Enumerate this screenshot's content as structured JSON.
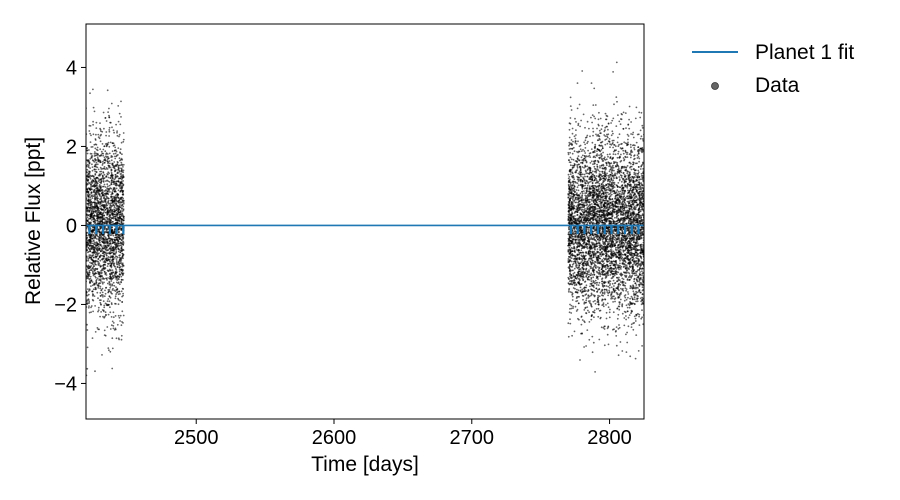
{
  "chart_data": {
    "type": "scatter",
    "title": "",
    "xlabel": "Time [days]",
    "ylabel": "Relative Flux [ppt]",
    "xlim": [
      2420,
      2825
    ],
    "ylim": [
      -4.9,
      5.1
    ],
    "xticks": [
      2500,
      2600,
      2700,
      2800
    ],
    "yticks": [
      -4,
      -2,
      0,
      2,
      4
    ],
    "ytick_labels": [
      "−4",
      "−2",
      "0",
      "2",
      "4"
    ],
    "grid": false,
    "legend_position": "outside-top-right",
    "series": [
      {
        "name": "Planet 1 fit",
        "kind": "line",
        "color": "#1f77b4",
        "baseline": 0,
        "transit_depth": -0.2,
        "transit_times": [
          2422.5,
          2427.5,
          2432.4,
          2437.3,
          2442.2,
          2447.1,
          2772.0,
          2776.9,
          2781.8,
          2786.7,
          2791.6,
          2796.5,
          2801.4,
          2806.3,
          2811.2,
          2816.1,
          2821.0
        ]
      },
      {
        "name": "Data",
        "kind": "scatter",
        "color": "#000000",
        "segments": [
          {
            "x_start": 2420,
            "x_end": 2447.5,
            "center": 0,
            "core_range": 2.4,
            "max_range": 4.6
          },
          {
            "x_start": 2770,
            "x_end": 2825,
            "center": 0,
            "core_range": 2.4,
            "max_range": 4.5
          }
        ]
      }
    ]
  }
}
